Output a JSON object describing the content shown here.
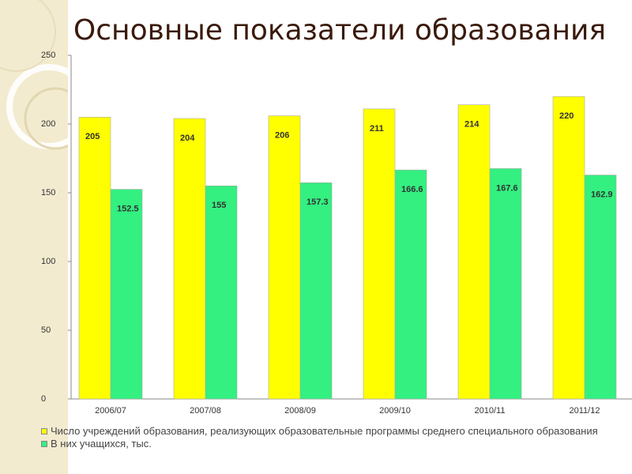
{
  "chart_data": {
    "type": "bar",
    "title": "Основные показатели образования",
    "categories": [
      "2006/07",
      "2007/08",
      "2008/09",
      "2009/10",
      "2010/11",
      "2011/12"
    ],
    "series": [
      {
        "name": "Число учреждений образования, реализующих образовательные программы среднего специального образования",
        "color": "#ffff00",
        "values": [
          205,
          204,
          206,
          211,
          214,
          220
        ]
      },
      {
        "name": "В них учащихся, тыс.",
        "color": "#33f080",
        "values": [
          152.5,
          155,
          157.3,
          166.6,
          167.6,
          162.9
        ]
      }
    ],
    "ylim": [
      0,
      250
    ],
    "yticks": [
      0,
      50,
      100,
      150,
      200,
      250
    ],
    "grid": false
  }
}
